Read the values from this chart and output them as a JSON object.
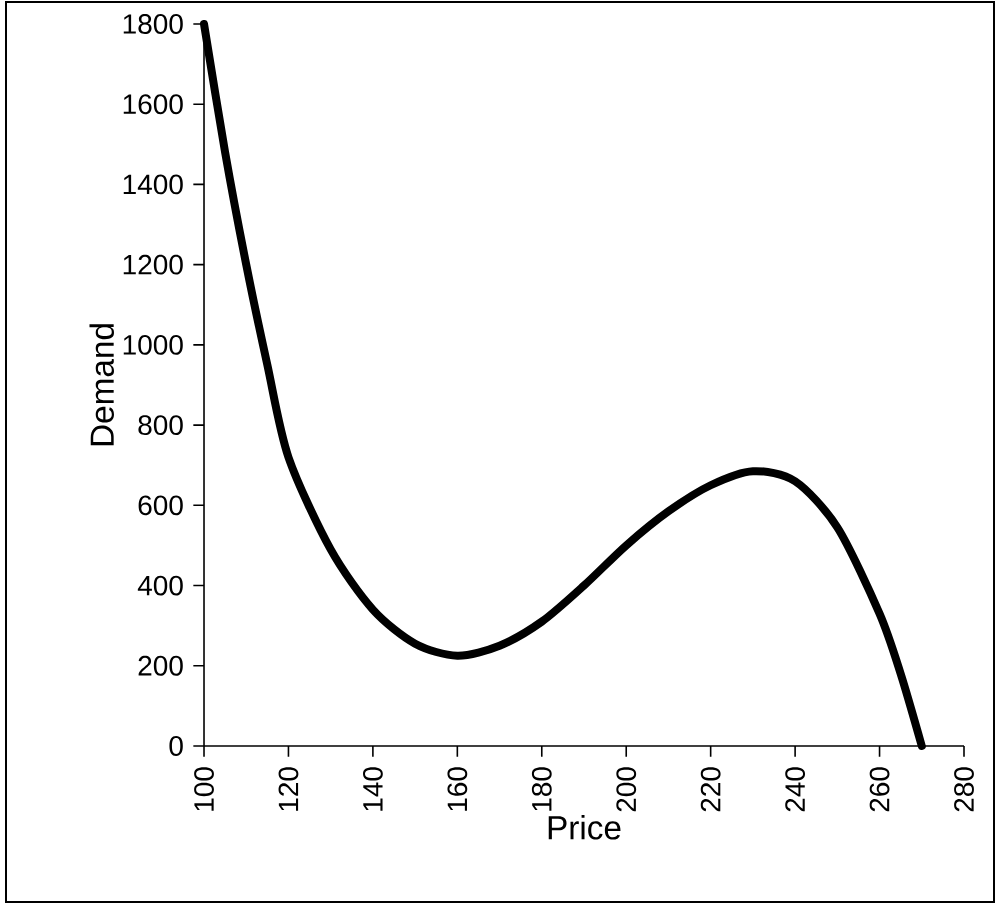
{
  "chart_data": {
    "type": "line",
    "xlabel": "Price",
    "ylabel": "Demand",
    "series": [
      {
        "color": "#000000",
        "x": [
          100,
          105,
          110,
          115,
          120,
          130,
          140,
          150,
          160,
          170,
          180,
          190,
          200,
          210,
          220,
          230,
          240,
          250,
          260,
          265,
          270
        ],
        "values": [
          1800,
          1480,
          1200,
          950,
          720,
          490,
          340,
          255,
          225,
          250,
          310,
          400,
          500,
          585,
          650,
          685,
          660,
          545,
          330,
          180,
          0
        ]
      }
    ],
    "xlim": [
      100,
      280
    ],
    "xticks": [
      100,
      120,
      140,
      160,
      180,
      200,
      220,
      240,
      260,
      280
    ],
    "ylim": [
      0,
      1800
    ],
    "yticks": [
      0,
      200,
      400,
      600,
      800,
      1000,
      1200,
      1400,
      1600,
      1800
    ],
    "marker": "none",
    "line_style": "solid"
  }
}
